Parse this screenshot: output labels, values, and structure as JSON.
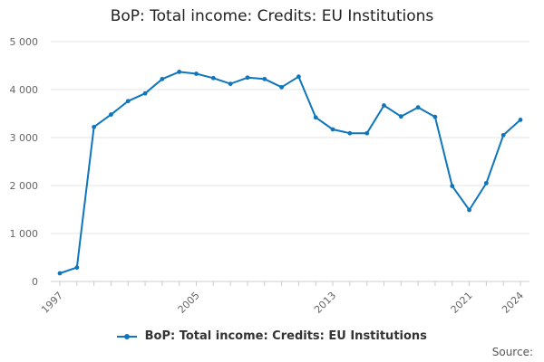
{
  "page_title": "BoP: Total income: Credits: EU Institutions",
  "source_label": "Source:",
  "colors": {
    "series": "#0f75bc",
    "grid": "#e6e6e6",
    "axis": "#cccccc",
    "tick_text": "#666666"
  },
  "chart_data": {
    "type": "line",
    "title": "BoP: Total income: Credits: EU Institutions",
    "xlabel": "",
    "ylabel": "",
    "x": [
      1997,
      1998,
      1999,
      2000,
      2001,
      2002,
      2003,
      2004,
      2005,
      2006,
      2007,
      2008,
      2009,
      2010,
      2011,
      2012,
      2013,
      2014,
      2015,
      2016,
      2017,
      2018,
      2019,
      2020,
      2021,
      2022,
      2023,
      2024
    ],
    "series": [
      {
        "name": "BoP: Total income: Credits: EU Institutions",
        "values": [
          170,
          290,
          3220,
          3480,
          3760,
          3920,
          4220,
          4370,
          4330,
          4240,
          4120,
          4250,
          4220,
          4050,
          4270,
          3420,
          3170,
          3090,
          3090,
          3670,
          3440,
          3630,
          3430,
          1990,
          1490,
          2050,
          3050,
          3370
        ]
      }
    ],
    "ylim": [
      0,
      5000
    ],
    "y_ticks": [
      0,
      1000,
      2000,
      3000,
      4000,
      5000
    ],
    "y_tick_labels": [
      "0",
      "1 000",
      "2 000",
      "3 000",
      "4 000",
      "5 000"
    ],
    "x_tick_labels": [
      "1997",
      "2005",
      "2013",
      "2021",
      "2024"
    ],
    "grid": "horizontal",
    "legend": "bottom"
  }
}
